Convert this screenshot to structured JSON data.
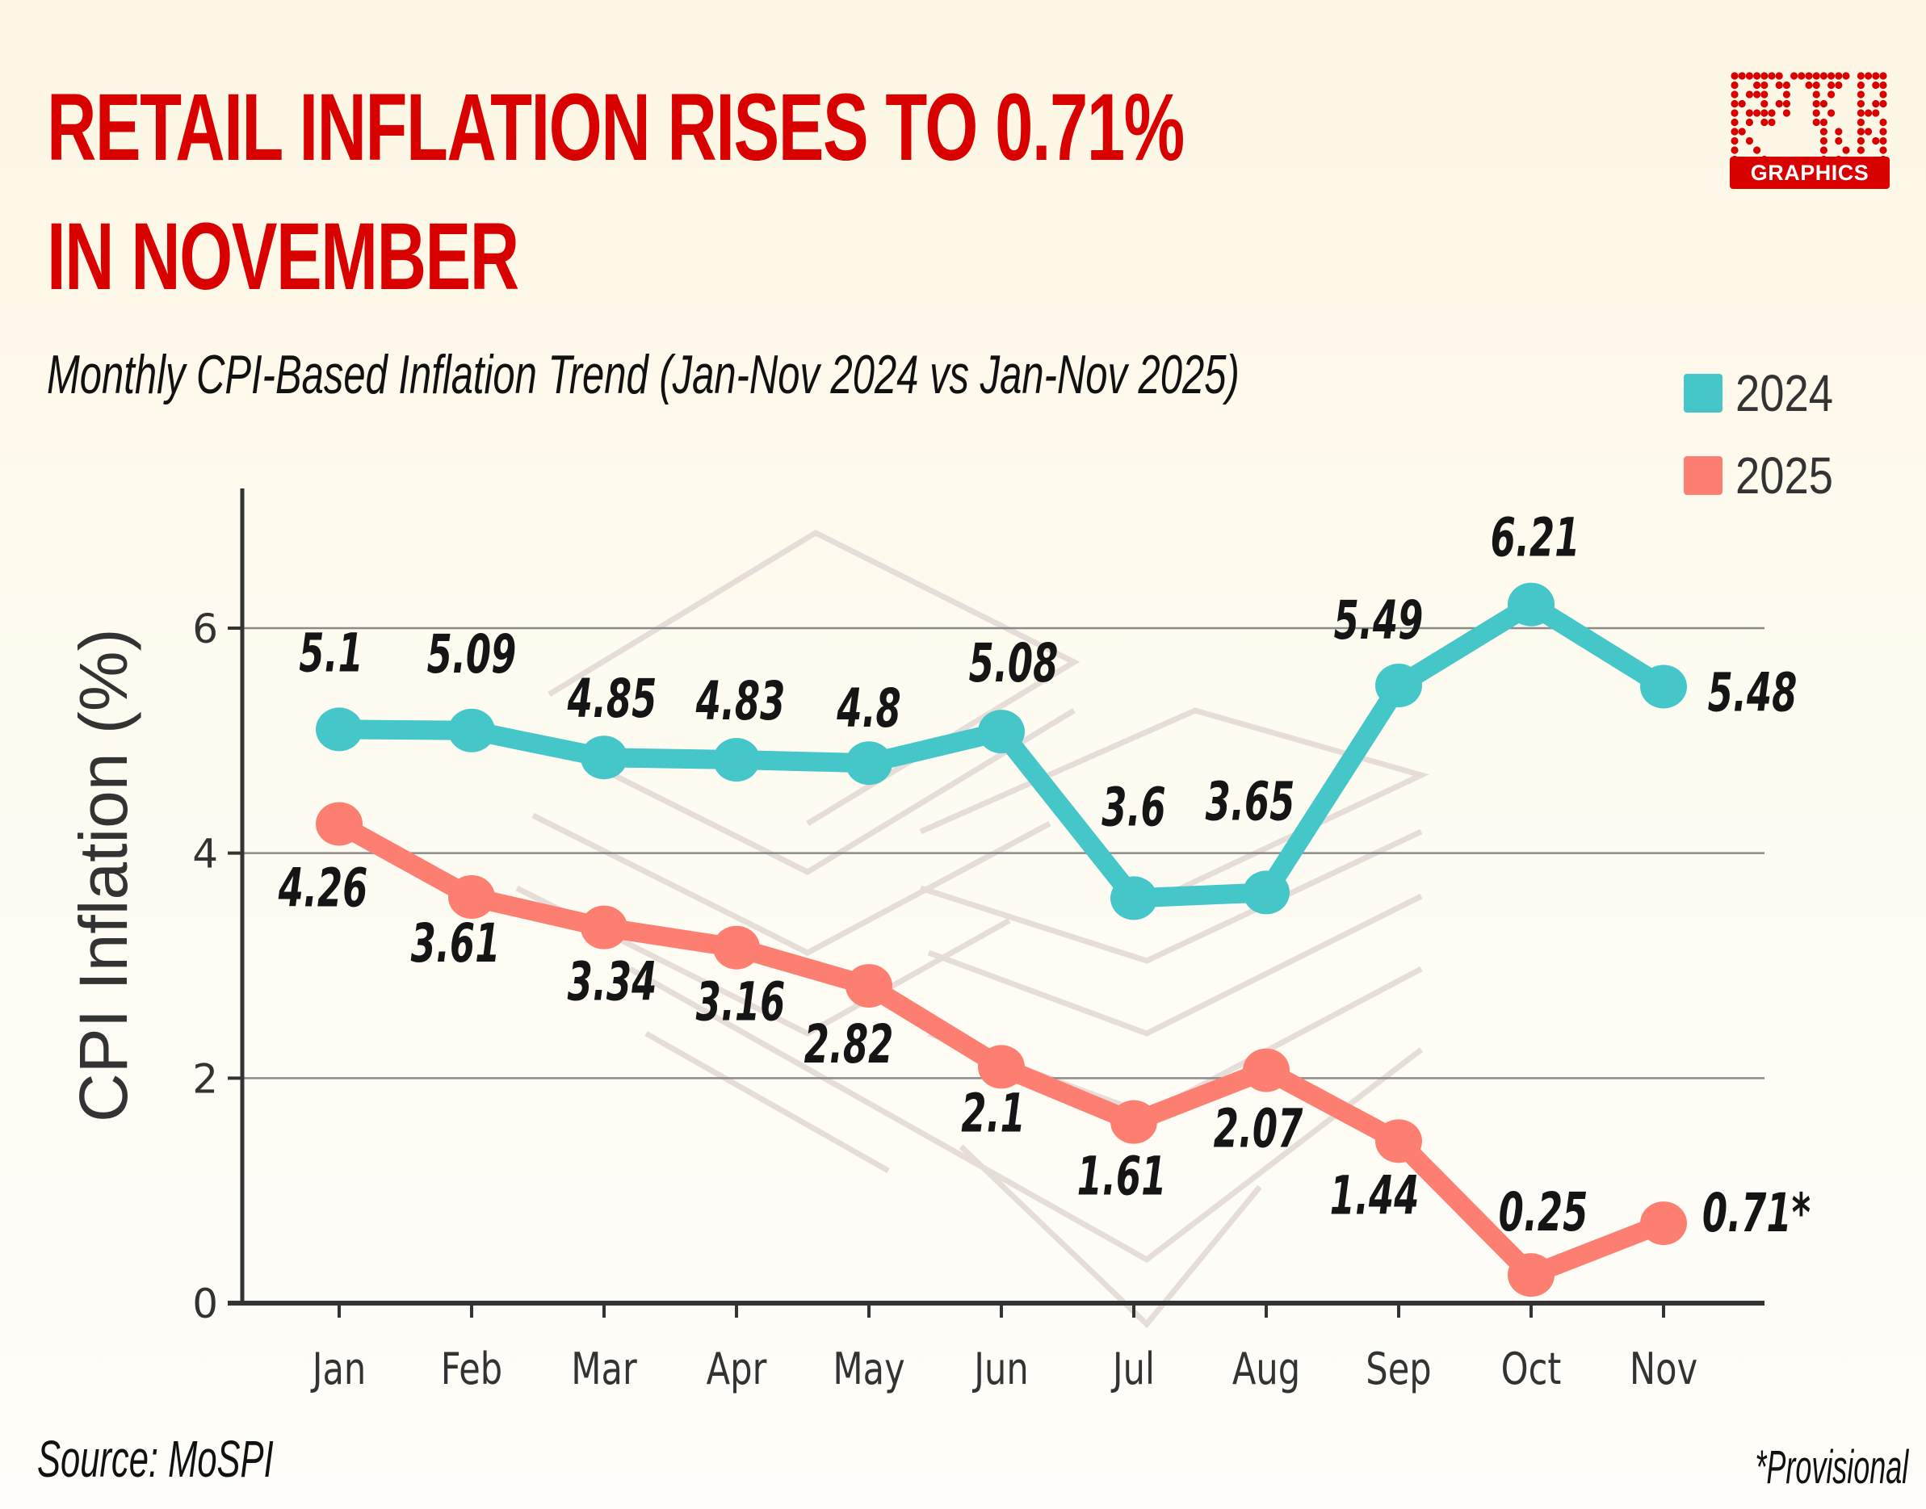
{
  "header": {
    "title_line1": "RETAIL INFLATION RISES TO 0.71%",
    "title_line2": "IN NOVEMBER",
    "subtitle": "Monthly CPI-Based Inflation Trend (Jan-Nov 2024 vs Jan-Nov 2025)"
  },
  "logo": {
    "icon": "pti-dot-logo-icon",
    "badge_text": "GRAPHICS",
    "color": "#d90000"
  },
  "footer": {
    "source": "Source: MoSPI",
    "note": "*Provisional"
  },
  "colors": {
    "title": "#d90000",
    "series_2024": "#45c6c8",
    "series_2025": "#fd7f71",
    "axis": "#333333",
    "grid": "#888888"
  },
  "chart_data": {
    "type": "line",
    "title": "Monthly CPI-Based Inflation Trend (Jan-Nov 2024 vs Jan-Nov 2025)",
    "xlabel": "",
    "ylabel": "CPI Inflation (%)",
    "categories": [
      "Jan",
      "Feb",
      "Mar",
      "Apr",
      "May",
      "Jun",
      "Jul",
      "Aug",
      "Sep",
      "Oct",
      "Nov"
    ],
    "ylim": [
      0,
      7.2
    ],
    "yticks": [
      0,
      2,
      4,
      6
    ],
    "grid": true,
    "legend_position": "top-right",
    "series": [
      {
        "name": "2024",
        "color": "#45c6c8",
        "values": [
          5.1,
          5.09,
          4.85,
          4.83,
          4.8,
          5.08,
          3.6,
          3.65,
          5.49,
          6.21,
          5.48
        ],
        "labels": [
          "5.1",
          "5.09",
          "4.85",
          "4.83",
          "4.8",
          "5.08",
          "3.6",
          "3.65",
          "5.49",
          "6.21",
          "5.48"
        ]
      },
      {
        "name": "2025",
        "color": "#fd7f71",
        "values": [
          4.26,
          3.61,
          3.34,
          3.16,
          2.82,
          2.1,
          1.61,
          2.07,
          1.44,
          0.25,
          0.71
        ],
        "labels": [
          "4.26",
          "3.61",
          "3.34",
          "3.16",
          "2.82",
          "2.1",
          "1.61",
          "2.07",
          "1.44",
          "0.25",
          "0.71*"
        ]
      }
    ]
  }
}
